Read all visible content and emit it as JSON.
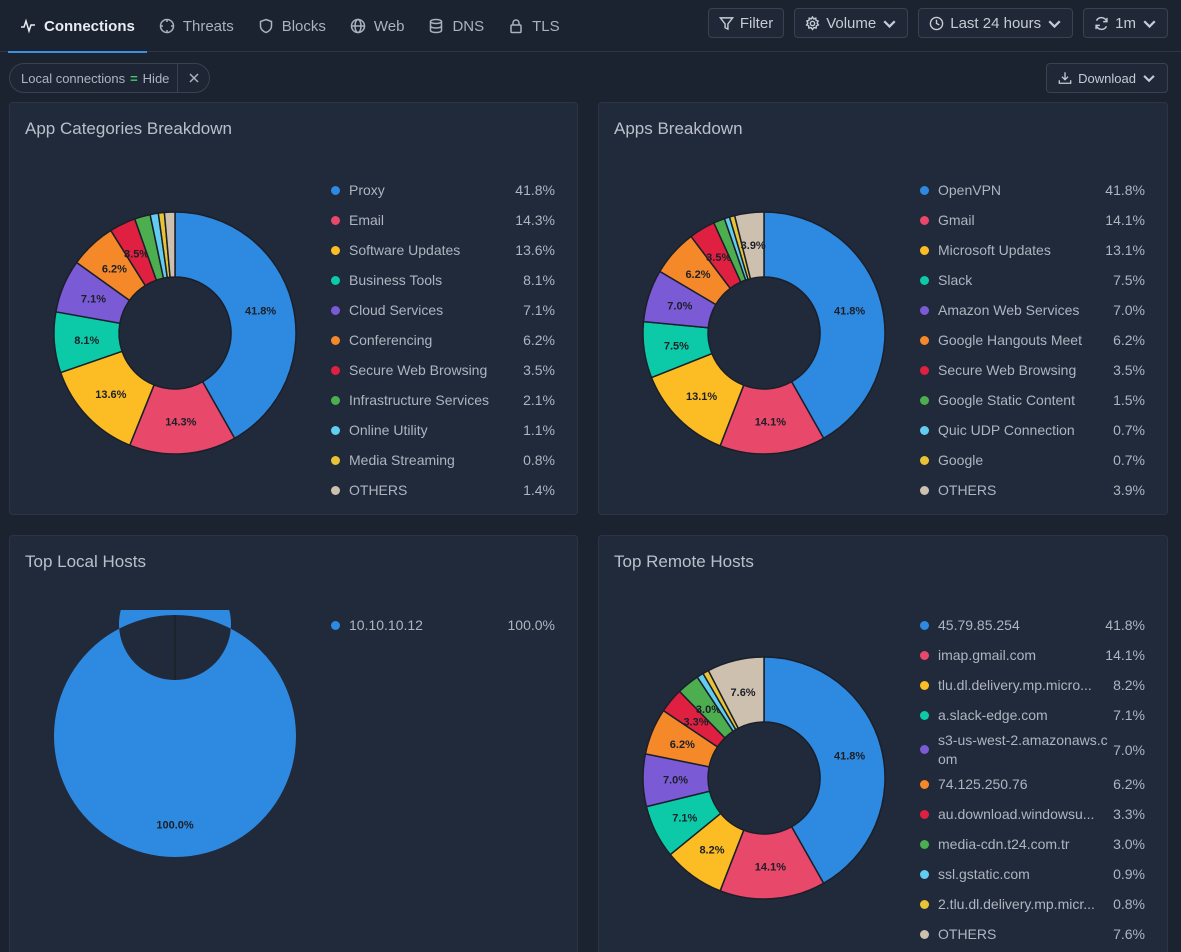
{
  "nav": {
    "tabs": [
      {
        "label": "Connections",
        "icon": "pulse-icon",
        "active": true
      },
      {
        "label": "Threats",
        "icon": "crosshair-icon"
      },
      {
        "label": "Blocks",
        "icon": "shield-icon"
      },
      {
        "label": "Web",
        "icon": "globe-icon"
      },
      {
        "label": "DNS",
        "icon": "database-icon"
      },
      {
        "label": "TLS",
        "icon": "lock-icon"
      }
    ],
    "filter_label": "Filter",
    "metric_label": "Volume",
    "time_label": "Last 24 hours",
    "refresh_label": "1m"
  },
  "filters": {
    "chip_key": "Local connections",
    "chip_op": "=",
    "chip_value": "Hide",
    "download_label": "Download"
  },
  "colors": {
    "blue": "#2d8ae0",
    "pink": "#e8486a",
    "yellow": "#fbbd23",
    "teal": "#0ccaa8",
    "purple": "#7b5ad6",
    "orange": "#f5892a",
    "red": "#e02040",
    "green": "#4cae4f",
    "lightblue": "#62cdf0",
    "gold": "#e9c336",
    "beige": "#cdc0ae"
  },
  "panels": [
    {
      "title": "App Categories Breakdown",
      "chart_data": {
        "type": "pie",
        "title": "App Categories Breakdown",
        "labels": [
          "Proxy",
          "Email",
          "Software Updates",
          "Business Tools",
          "Cloud Services",
          "Conferencing",
          "Secure Web Browsing",
          "Infrastructure Services",
          "Online Utility",
          "Media Streaming",
          "OTHERS"
        ],
        "values": [
          41.8,
          14.3,
          13.6,
          8.1,
          7.1,
          6.2,
          3.5,
          2.1,
          1.1,
          0.8,
          1.4
        ],
        "colors": [
          "#2d8ae0",
          "#e8486a",
          "#fbbd23",
          "#0ccaa8",
          "#7b5ad6",
          "#f5892a",
          "#e02040",
          "#4cae4f",
          "#62cdf0",
          "#e9c336",
          "#cdc0ae"
        ],
        "display": [
          "41.8%",
          "14.3%",
          "13.6%",
          "8.1%",
          "7.1%",
          "6.2%",
          "3.5%",
          "2.1%",
          "1.1%",
          "0.8%",
          "1.4%"
        ],
        "slice_labels": [
          "41.8%",
          "14.3%",
          "13.6%",
          "8.1%",
          "7.1%",
          "6.2%",
          "3.5%",
          "",
          "",
          "",
          ""
        ]
      }
    },
    {
      "title": "Apps Breakdown",
      "chart_data": {
        "type": "pie",
        "title": "Apps Breakdown",
        "labels": [
          "OpenVPN",
          "Gmail",
          "Microsoft Updates",
          "Slack",
          "Amazon Web Services",
          "Google Hangouts Meet",
          "Secure Web Browsing",
          "Google Static Content",
          "Quic UDP Connection",
          "Google",
          "OTHERS"
        ],
        "values": [
          41.8,
          14.1,
          13.1,
          7.5,
          7.0,
          6.2,
          3.5,
          1.5,
          0.7,
          0.7,
          3.9
        ],
        "colors": [
          "#2d8ae0",
          "#e8486a",
          "#fbbd23",
          "#0ccaa8",
          "#7b5ad6",
          "#f5892a",
          "#e02040",
          "#4cae4f",
          "#62cdf0",
          "#e9c336",
          "#cdc0ae"
        ],
        "display": [
          "41.8%",
          "14.1%",
          "13.1%",
          "7.5%",
          "7.0%",
          "6.2%",
          "3.5%",
          "1.5%",
          "0.7%",
          "0.7%",
          "3.9%"
        ],
        "slice_labels": [
          "41.8%",
          "14.1%",
          "13.1%",
          "7.5%",
          "7.0%",
          "6.2%",
          "3.5%",
          "",
          "",
          "",
          "3.9%"
        ]
      }
    },
    {
      "title": "Top Local Hosts",
      "chart_data": {
        "type": "pie",
        "title": "Top Local Hosts",
        "labels": [
          "10.10.10.12"
        ],
        "values": [
          100.0
        ],
        "colors": [
          "#2d8ae0"
        ],
        "display": [
          "100.0%"
        ],
        "slice_labels": [
          "100.0%"
        ]
      }
    },
    {
      "title": "Top Remote Hosts",
      "chart_data": {
        "type": "pie",
        "title": "Top Remote Hosts",
        "labels": [
          "45.79.85.254",
          "imap.gmail.com",
          "tlu.dl.delivery.mp.micro...",
          "a.slack-edge.com",
          "s3-us-west-2.amazonaws.com",
          "74.125.250.76",
          "au.download.windowsu...",
          "media-cdn.t24.com.tr",
          "ssl.gstatic.com",
          "2.tlu.dl.delivery.mp.micr...",
          "OTHERS"
        ],
        "values": [
          41.8,
          14.1,
          8.2,
          7.1,
          7.0,
          6.2,
          3.3,
          3.0,
          0.9,
          0.8,
          7.6
        ],
        "colors": [
          "#2d8ae0",
          "#e8486a",
          "#fbbd23",
          "#0ccaa8",
          "#7b5ad6",
          "#f5892a",
          "#e02040",
          "#4cae4f",
          "#62cdf0",
          "#e9c336",
          "#cdc0ae"
        ],
        "display": [
          "41.8%",
          "14.1%",
          "8.2%",
          "7.1%",
          "7.0%",
          "6.2%",
          "3.3%",
          "3.0%",
          "0.9%",
          "0.8%",
          "7.6%"
        ],
        "slice_labels": [
          "41.8%",
          "14.1%",
          "8.2%",
          "7.1%",
          "7.0%",
          "6.2%",
          "3.3%",
          "3.0%",
          "",
          "",
          "7.6%"
        ]
      }
    }
  ]
}
